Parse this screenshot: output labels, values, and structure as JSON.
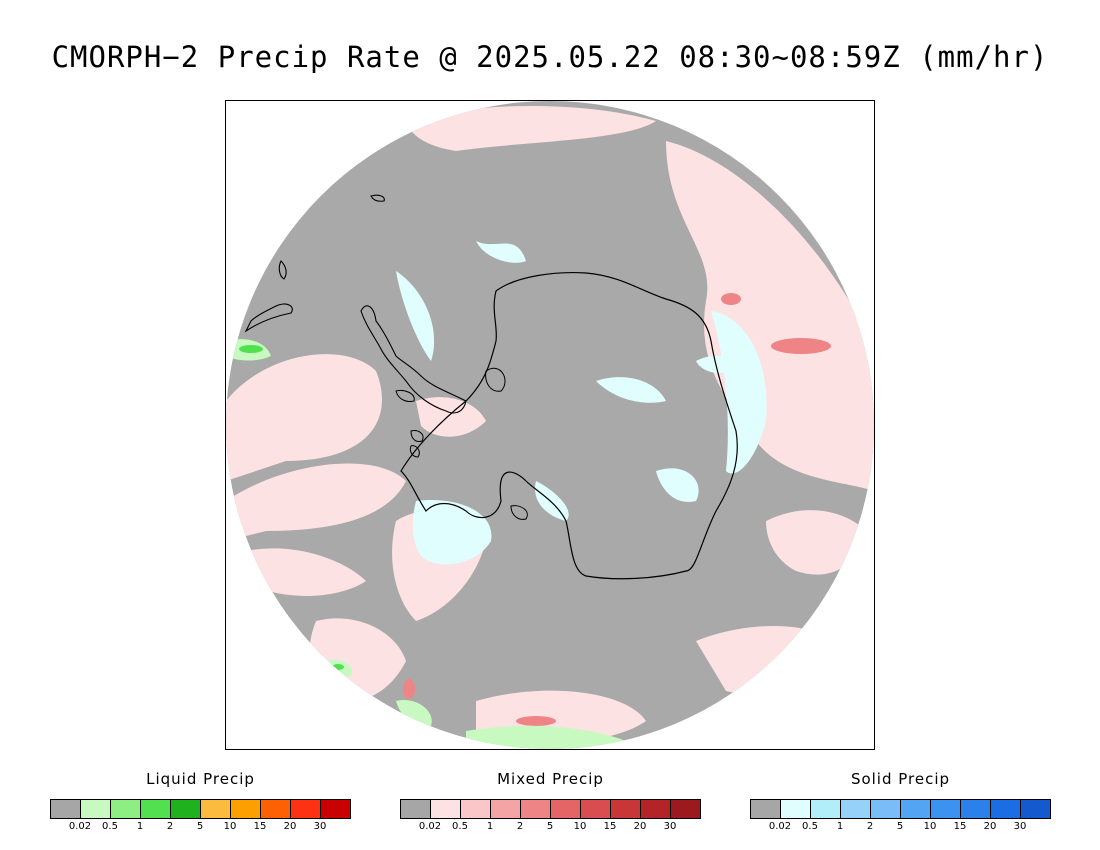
{
  "title": "CMORPH−2 Precip Rate @ 2025.05.22 08:30~08:59Z (mm/hr)",
  "map": {
    "projection": "south-polar-stereographic",
    "background_color": "#a9a9a9",
    "outside_color": "#ffffff",
    "coastline_color": "#000000"
  },
  "legends": [
    {
      "id": "liquid",
      "title": "Liquid Precip",
      "colors": [
        "#a6a6a6",
        "#c8f9c0",
        "#8eee84",
        "#52e051",
        "#20b21e",
        "#fbbb3e",
        "#fe9f00",
        "#fe6004",
        "#fe3113",
        "#c90000"
      ],
      "ticks": [
        "0.02",
        "0.5",
        "1",
        "2",
        "5",
        "10",
        "15",
        "20",
        "30"
      ]
    },
    {
      "id": "mixed",
      "title": "Mixed Precip",
      "colors": [
        "#a6a6a6",
        "#fde2e3",
        "#fbc6c8",
        "#f5a4a6",
        "#ee8486",
        "#e56566",
        "#d94c4f",
        "#c93638",
        "#b42427",
        "#9c1a1d"
      ],
      "ticks": [
        "0.02",
        "0.5",
        "1",
        "2",
        "5",
        "10",
        "15",
        "20",
        "30"
      ]
    },
    {
      "id": "solid",
      "title": "Solid Precip",
      "colors": [
        "#a6a6a6",
        "#e1fefe",
        "#b2eefa",
        "#96d1fa",
        "#79bdf8",
        "#53a4f3",
        "#3c92f0",
        "#2b80ea",
        "#1b6de4",
        "#1459cd"
      ],
      "ticks": [
        "0.02",
        "0.5",
        "1",
        "2",
        "5",
        "10",
        "15",
        "20",
        "30"
      ]
    }
  ]
}
